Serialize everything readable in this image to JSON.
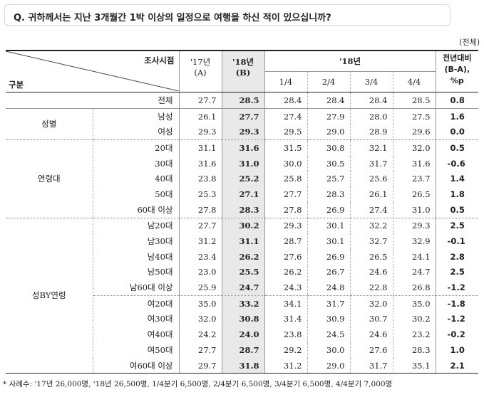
{
  "question": "Q. 귀하께서는 지난 3개월간 1박 이상의 일정으로 여행을 하신 적이 있으십니까?",
  "unit_note": "(전체)",
  "header": {
    "survey_time": "조사시점",
    "category": "구분",
    "y17_line1": "'17년",
    "y17_line2": "(A)",
    "y18_line1": "'18년",
    "y18_line2": "(B)",
    "y18_quarters_title": "'18년",
    "q1": "1/4",
    "q2": "2/4",
    "q3": "3/4",
    "q4": "4/4",
    "diff_line1": "전년대비",
    "diff_line2": "(B-A),",
    "diff_line3": "%p"
  },
  "groups": {
    "gender": "성별",
    "age": "연령대",
    "gender_age": "성BY연령"
  },
  "rows": [
    {
      "label": "전체",
      "a": "27.7",
      "b": "28.5",
      "q1": "28.4",
      "q2": "28.4",
      "q3": "28.4",
      "q4": "28.5",
      "diff": "0.8"
    },
    {
      "label": "남성",
      "a": "26.1",
      "b": "27.7",
      "q1": "27.4",
      "q2": "27.9",
      "q3": "28.0",
      "q4": "27.5",
      "diff": "1.6"
    },
    {
      "label": "여성",
      "a": "29.3",
      "b": "29.3",
      "q1": "29.5",
      "q2": "29.0",
      "q3": "28.9",
      "q4": "29.6",
      "diff": "0.0"
    },
    {
      "label": "20대",
      "a": "31.1",
      "b": "31.6",
      "q1": "31.5",
      "q2": "30.8",
      "q3": "32.1",
      "q4": "32.0",
      "diff": "0.5"
    },
    {
      "label": "30대",
      "a": "31.6",
      "b": "31.0",
      "q1": "30.0",
      "q2": "30.5",
      "q3": "31.7",
      "q4": "31.6",
      "diff": "-0.6"
    },
    {
      "label": "40대",
      "a": "23.8",
      "b": "25.2",
      "q1": "25.8",
      "q2": "25.7",
      "q3": "25.6",
      "q4": "23.7",
      "diff": "1.4"
    },
    {
      "label": "50대",
      "a": "25.3",
      "b": "27.1",
      "q1": "27.7",
      "q2": "28.3",
      "q3": "26.1",
      "q4": "26.5",
      "diff": "1.8"
    },
    {
      "label": "60대 이상",
      "a": "27.8",
      "b": "28.3",
      "q1": "27.8",
      "q2": "26.9",
      "q3": "27.4",
      "q4": "31.0",
      "diff": "0.5"
    },
    {
      "label": "남20대",
      "a": "27.7",
      "b": "30.2",
      "q1": "29.3",
      "q2": "30.1",
      "q3": "32.2",
      "q4": "29.3",
      "diff": "2.5"
    },
    {
      "label": "남30대",
      "a": "31.2",
      "b": "31.1",
      "q1": "28.7",
      "q2": "30.1",
      "q3": "32.7",
      "q4": "32.9",
      "diff": "-0.1"
    },
    {
      "label": "남40대",
      "a": "23.4",
      "b": "26.2",
      "q1": "27.6",
      "q2": "26.9",
      "q3": "26.5",
      "q4": "24.1",
      "diff": "2.8"
    },
    {
      "label": "남50대",
      "a": "23.0",
      "b": "25.5",
      "q1": "26.2",
      "q2": "26.7",
      "q3": "24.6",
      "q4": "24.7",
      "diff": "2.5"
    },
    {
      "label": "남60대 이상",
      "a": "25.9",
      "b": "24.7",
      "q1": "24.3",
      "q2": "24.8",
      "q3": "22.8",
      "q4": "26.8",
      "diff": "-1.2"
    },
    {
      "label": "여20대",
      "a": "35.0",
      "b": "33.2",
      "q1": "34.1",
      "q2": "31.7",
      "q3": "32.0",
      "q4": "35.0",
      "diff": "-1.8"
    },
    {
      "label": "여30대",
      "a": "32.0",
      "b": "30.8",
      "q1": "31.4",
      "q2": "30.9",
      "q3": "30.7",
      "q4": "30.2",
      "diff": "-1.2"
    },
    {
      "label": "여40대",
      "a": "24.2",
      "b": "24.0",
      "q1": "23.8",
      "q2": "24.5",
      "q3": "24.6",
      "q4": "23.2",
      "diff": "-0.2"
    },
    {
      "label": "여50대",
      "a": "27.7",
      "b": "28.7",
      "q1": "29.2",
      "q2": "30.0",
      "q3": "27.6",
      "q4": "28.3",
      "diff": "1.0"
    },
    {
      "label": "여60대 이상",
      "a": "29.7",
      "b": "31.8",
      "q1": "31.2",
      "q2": "29.0",
      "q3": "31.7",
      "q4": "35.1",
      "diff": "2.1"
    }
  ],
  "footnote": "* 사례수: '17년 26,000명, '18년 26,500명, 1/4분기 6,500명, 2/4분기 6,500명, 3/4분기 6,500명, 4/4분기 7,000명"
}
